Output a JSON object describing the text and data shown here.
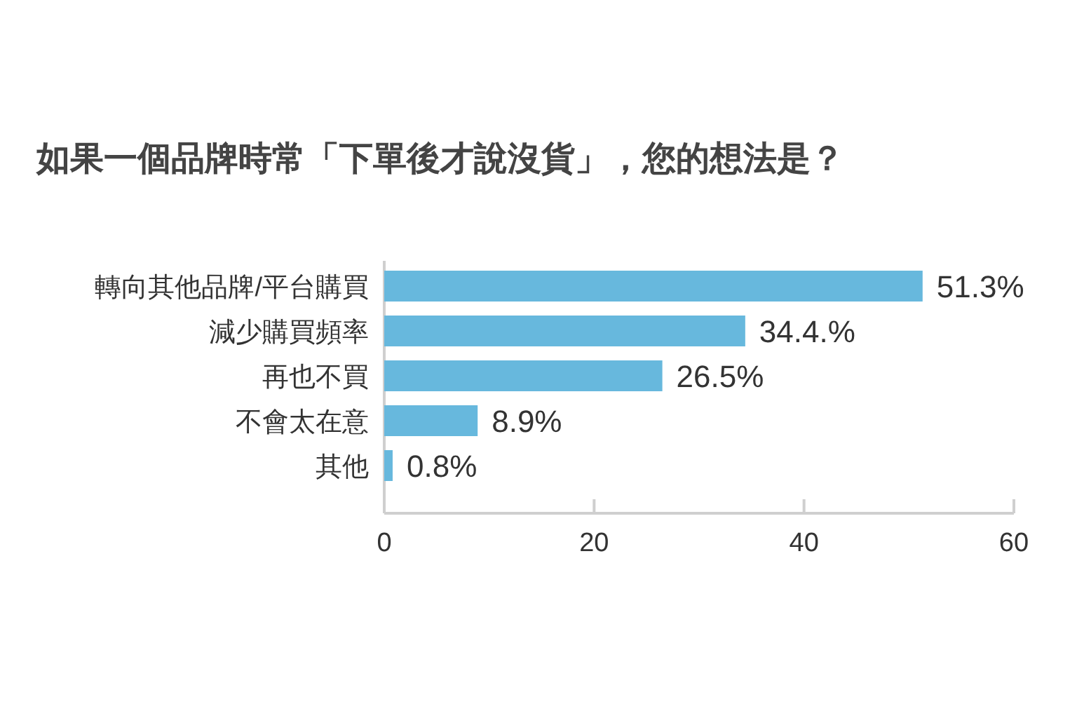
{
  "chart_data": {
    "type": "bar",
    "orientation": "horizontal",
    "title": "如果一個品牌時常「下單後才說沒貨」，您的想法是？",
    "categories": [
      "轉向其他品牌/平台購買",
      "減少購買頻率",
      "再也不買",
      "不會太在意",
      "其他"
    ],
    "values": [
      51.3,
      34.4,
      26.5,
      8.9,
      0.8
    ],
    "value_labels": [
      "51.3%",
      "34.4.%",
      "26.5%",
      "8.9%",
      "0.8%"
    ],
    "color": "#67b8dd",
    "xlim": [
      0,
      60
    ],
    "xticks": [
      0,
      20,
      40,
      60
    ]
  }
}
